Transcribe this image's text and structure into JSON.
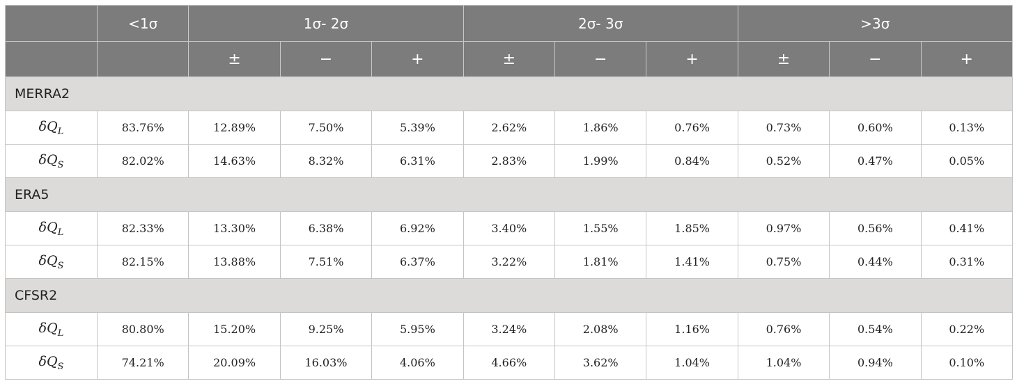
{
  "table": {
    "header_top": [
      "",
      "<1σ",
      "1σ- 2σ",
      "2σ- 3σ",
      ">3σ"
    ],
    "header_sub": [
      "",
      "",
      "±",
      "−",
      "+",
      "±",
      "−",
      "+",
      "±",
      "−",
      "+"
    ],
    "groups": [
      {
        "name": "MERRA2",
        "rows": [
          {
            "label": "δQL",
            "values": [
              "83.76%",
              "12.89%",
              "7.50%",
              "5.39%",
              "2.62%",
              "1.86%",
              "0.76%",
              "0.73%",
              "0.60%",
              "0.13%"
            ]
          },
          {
            "label": "δQS",
            "values": [
              "82.02%",
              "14.63%",
              "8.32%",
              "6.31%",
              "2.83%",
              "1.99%",
              "0.84%",
              "0.52%",
              "0.47%",
              "0.05%"
            ]
          }
        ]
      },
      {
        "name": "ERA5",
        "rows": [
          {
            "label": "δQL",
            "values": [
              "82.33%",
              "13.30%",
              "6.38%",
              "6.92%",
              "3.40%",
              "1.55%",
              "1.85%",
              "0.97%",
              "0.56%",
              "0.41%"
            ]
          },
          {
            "label": "δQS",
            "values": [
              "82.15%",
              "13.88%",
              "7.51%",
              "6.37%",
              "3.22%",
              "1.81%",
              "1.41%",
              "0.75%",
              "0.44%",
              "0.31%"
            ]
          }
        ]
      },
      {
        "name": "CFSR2",
        "rows": [
          {
            "label": "δQL",
            "values": [
              "80.80%",
              "15.20%",
              "9.25%",
              "5.95%",
              "3.24%",
              "2.08%",
              "1.16%",
              "0.76%",
              "0.54%",
              "0.22%"
            ]
          },
          {
            "label": "δQS",
            "values": [
              "74.21%",
              "20.09%",
              "16.03%",
              "4.06%",
              "4.66%",
              "3.62%",
              "1.04%",
              "1.04%",
              "0.94%",
              "0.10%"
            ]
          }
        ]
      }
    ]
  }
}
